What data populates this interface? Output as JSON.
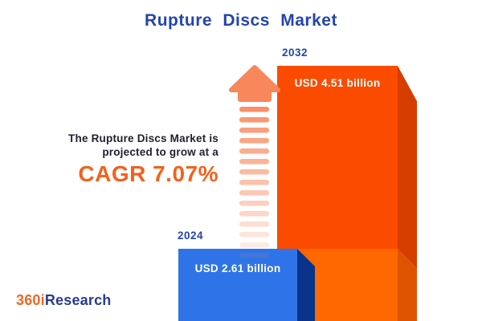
{
  "title": "Rupture Discs Market",
  "tagline": {
    "line1": "The Rupture Discs Market is",
    "line2": "projected to grow at a",
    "cagr": "CAGR 7.07%"
  },
  "bars": [
    {
      "year": "2024",
      "value_label": "USD 2.61 billion"
    },
    {
      "year": "2032",
      "value_label": "USD 4.51 billion"
    }
  ],
  "logo": {
    "part1": "360i",
    "part2": "Research"
  },
  "icons": {
    "growth_arrow": "up-arrow-icon"
  },
  "colors": {
    "title_blue": "#2345AE",
    "text_dark": "#20222F",
    "cagr_orange": "#F4611C",
    "year_blue": "#2345AE",
    "value_text": "#FFFFFF",
    "bar2032_front": "#FB4B00",
    "bar2032_side": "#D63E00",
    "bar2032_front_lower": "#FF6700",
    "bar2032_side_lower": "#DE5400",
    "bar2024_front": "#2E74E8",
    "bar2024_side": "#0A338C",
    "arrow": "#F8875C",
    "logo_orange": "#F26522",
    "logo_blue": "#293C90",
    "background": "#FFFFFF"
  },
  "chart_data": {
    "type": "bar",
    "title": "Rupture Discs Market",
    "categories": [
      "2024",
      "2032"
    ],
    "values": [
      2.61,
      4.51
    ],
    "unit": "USD billion",
    "value_labels": [
      "USD 2.61 billion",
      "USD 4.51 billion"
    ],
    "annotations": [
      "The Rupture Discs Market is projected to grow at a CAGR 7.07%"
    ],
    "xlabel": "",
    "ylabel": "",
    "grid": false,
    "legend": false,
    "style": "3d-extruded bars, blue for 2024, orange for 2032, growth arrow between annotation and bars"
  }
}
